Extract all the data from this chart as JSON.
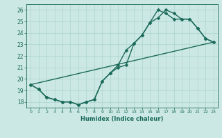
{
  "xlabel": "Humidex (Indice chaleur)",
  "bg_color": "#cce8e4",
  "grid_color": "#aad4cc",
  "line_color": "#1a6a5a",
  "xlim": [
    -0.5,
    23.5
  ],
  "ylim": [
    17.5,
    26.5
  ],
  "xticks": [
    0,
    1,
    2,
    3,
    4,
    5,
    6,
    7,
    8,
    9,
    10,
    11,
    12,
    13,
    14,
    15,
    16,
    17,
    18,
    19,
    20,
    21,
    22,
    23
  ],
  "yticks": [
    18,
    19,
    20,
    21,
    22,
    23,
    24,
    25,
    26
  ],
  "line1_x": [
    0,
    1,
    2,
    3,
    4,
    5,
    6,
    7,
    8,
    9,
    10,
    11,
    12,
    13,
    14,
    15,
    16,
    17,
    18,
    19,
    20,
    21,
    22,
    23
  ],
  "line1_y": [
    19.5,
    19.1,
    18.4,
    18.2,
    18.0,
    18.0,
    17.75,
    18.0,
    18.2,
    19.8,
    20.5,
    21.2,
    22.5,
    23.1,
    23.8,
    24.9,
    26.0,
    25.7,
    25.2,
    25.2,
    25.2,
    24.4,
    23.5,
    23.2
  ],
  "line2_x": [
    0,
    1,
    2,
    3,
    4,
    5,
    6,
    7,
    8,
    9,
    10,
    11,
    12,
    13,
    14,
    15,
    16,
    17,
    18,
    19,
    20,
    21,
    22,
    23
  ],
  "line2_y": [
    19.5,
    19.1,
    18.4,
    18.2,
    18.0,
    18.0,
    17.75,
    18.0,
    18.2,
    19.8,
    20.5,
    21.0,
    21.2,
    23.1,
    23.8,
    24.9,
    25.3,
    26.0,
    25.7,
    25.2,
    25.2,
    24.4,
    23.5,
    23.2
  ],
  "line3_x": [
    0,
    23
  ],
  "line3_y": [
    19.5,
    23.2
  ],
  "marker_size": 2.5,
  "line_width": 1.0
}
